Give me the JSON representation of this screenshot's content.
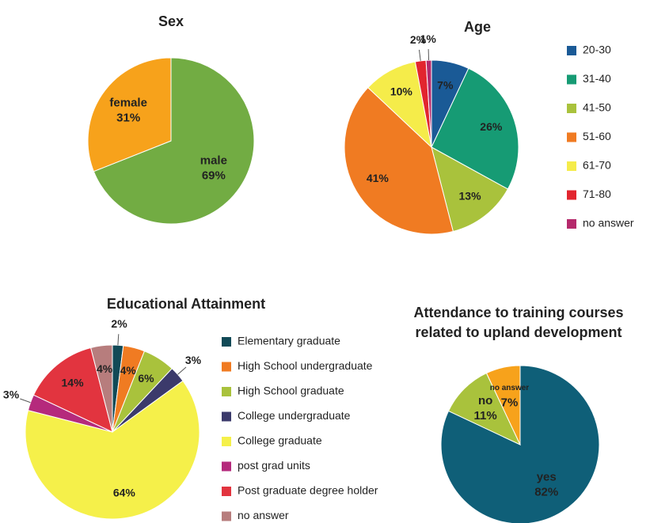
{
  "chart_data": [
    {
      "type": "pie",
      "title": "Sex",
      "categories": [
        "male",
        "female"
      ],
      "values": [
        69,
        31
      ],
      "value_labels": [
        "69%",
        "31%"
      ],
      "colors": [
        "#72ac43",
        "#f7a21b"
      ]
    },
    {
      "type": "pie",
      "title": "Age",
      "categories": [
        "20-30",
        "31-40",
        "41-50",
        "51-60",
        "61-70",
        "71-80",
        "no answer"
      ],
      "values": [
        7,
        26,
        13,
        41,
        10,
        2,
        1
      ],
      "value_labels": [
        "7%",
        "26%",
        "13%",
        "41%",
        "10%",
        "2%",
        "1%"
      ],
      "colors": [
        "#1a5a96",
        "#169b74",
        "#a9c23c",
        "#f07b22",
        "#f5ec4a",
        "#e2252e",
        "#b52a6c"
      ],
      "legend": "right"
    },
    {
      "type": "pie",
      "title": "Educational Attainment",
      "categories": [
        "Elementary graduate",
        "High School undergraduate",
        "High School graduate",
        "College undergraduate",
        "College graduate",
        "post grad units",
        "Post graduate degree holder",
        "no answer"
      ],
      "values": [
        2,
        4,
        6,
        3,
        64,
        3,
        14,
        4
      ],
      "value_labels": [
        "2%",
        "4%",
        "6%",
        "3%",
        "64%",
        "3%",
        "14%",
        "4%"
      ],
      "colors": [
        "#114a57",
        "#f07b22",
        "#a9c23c",
        "#3b3a6b",
        "#f5f04a",
        "#b52a7c",
        "#e2343f",
        "#b77d7d"
      ],
      "legend": "right"
    },
    {
      "type": "pie",
      "title": [
        "Attendance to training courses",
        "related to upland development"
      ],
      "categories": [
        "yes",
        "no",
        "no answer"
      ],
      "values": [
        82,
        11,
        7
      ],
      "value_labels": [
        "82%",
        "11%",
        "7%"
      ],
      "colors": [
        "#0f5f78",
        "#a9c23c",
        "#f7a21b"
      ]
    }
  ]
}
